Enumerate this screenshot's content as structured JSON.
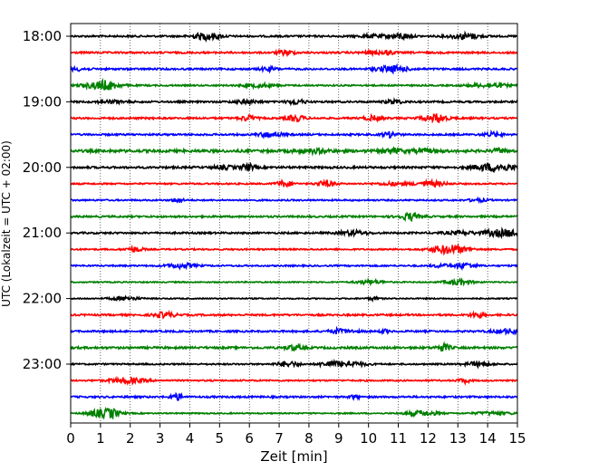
{
  "chart_data": {
    "type": "line",
    "title": "",
    "xlabel": "Zeit  [min]",
    "ylabel": "UTC (Lokalzeit = UTC + 02:00)",
    "xlim": [
      0,
      15
    ],
    "x_ticks": [
      0,
      1,
      2,
      3,
      4,
      5,
      6,
      7,
      8,
      9,
      10,
      11,
      12,
      13,
      14,
      15
    ],
    "x_tick_labels": [
      "0",
      "1",
      "2",
      "3",
      "4",
      "5",
      "6",
      "7",
      "8",
      "9",
      "10",
      "11",
      "12",
      "13",
      "14",
      "15"
    ],
    "y_tick_labels": [
      "18:00",
      "19:00",
      "20:00",
      "21:00",
      "22:00",
      "23:00"
    ],
    "y_tick_rows": [
      0,
      4,
      8,
      12,
      16,
      20
    ],
    "grid": "vertical dotted at each minute",
    "legend": "none",
    "row_interval_minutes": 15,
    "series": [
      {
        "start": "18:00",
        "color": "#000000",
        "amplitude": 0.6
      },
      {
        "start": "18:15",
        "color": "#ff0000",
        "amplitude": 0.6
      },
      {
        "start": "18:30",
        "color": "#0000ff",
        "amplitude": 0.6
      },
      {
        "start": "18:45",
        "color": "#008000",
        "amplitude": 0.5
      },
      {
        "start": "19:00",
        "color": "#000000",
        "amplitude": 0.6
      },
      {
        "start": "19:15",
        "color": "#ff0000",
        "amplitude": 0.6
      },
      {
        "start": "19:30",
        "color": "#0000ff",
        "amplitude": 0.6
      },
      {
        "start": "19:45",
        "color": "#008000",
        "amplitude": 0.9
      },
      {
        "start": "20:00",
        "color": "#000000",
        "amplitude": 0.7
      },
      {
        "start": "20:15",
        "color": "#ff0000",
        "amplitude": 0.5
      },
      {
        "start": "20:30",
        "color": "#0000ff",
        "amplitude": 0.5
      },
      {
        "start": "20:45",
        "color": "#008000",
        "amplitude": 0.6
      },
      {
        "start": "21:00",
        "color": "#000000",
        "amplitude": 0.6
      },
      {
        "start": "21:15",
        "color": "#ff0000",
        "amplitude": 0.5
      },
      {
        "start": "21:30",
        "color": "#0000ff",
        "amplitude": 0.5
      },
      {
        "start": "21:45",
        "color": "#008000",
        "amplitude": 0.4
      },
      {
        "start": "22:00",
        "color": "#000000",
        "amplitude": 0.4
      },
      {
        "start": "22:15",
        "color": "#ff0000",
        "amplitude": 0.6
      },
      {
        "start": "22:30",
        "color": "#0000ff",
        "amplitude": 0.6
      },
      {
        "start": "22:45",
        "color": "#008000",
        "amplitude": 0.7
      },
      {
        "start": "23:00",
        "color": "#000000",
        "amplitude": 0.5
      },
      {
        "start": "23:15",
        "color": "#ff0000",
        "amplitude": 0.5
      },
      {
        "start": "23:30",
        "color": "#0000ff",
        "amplitude": 0.6
      },
      {
        "start": "23:45",
        "color": "#008000",
        "amplitude": 0.4
      }
    ]
  }
}
